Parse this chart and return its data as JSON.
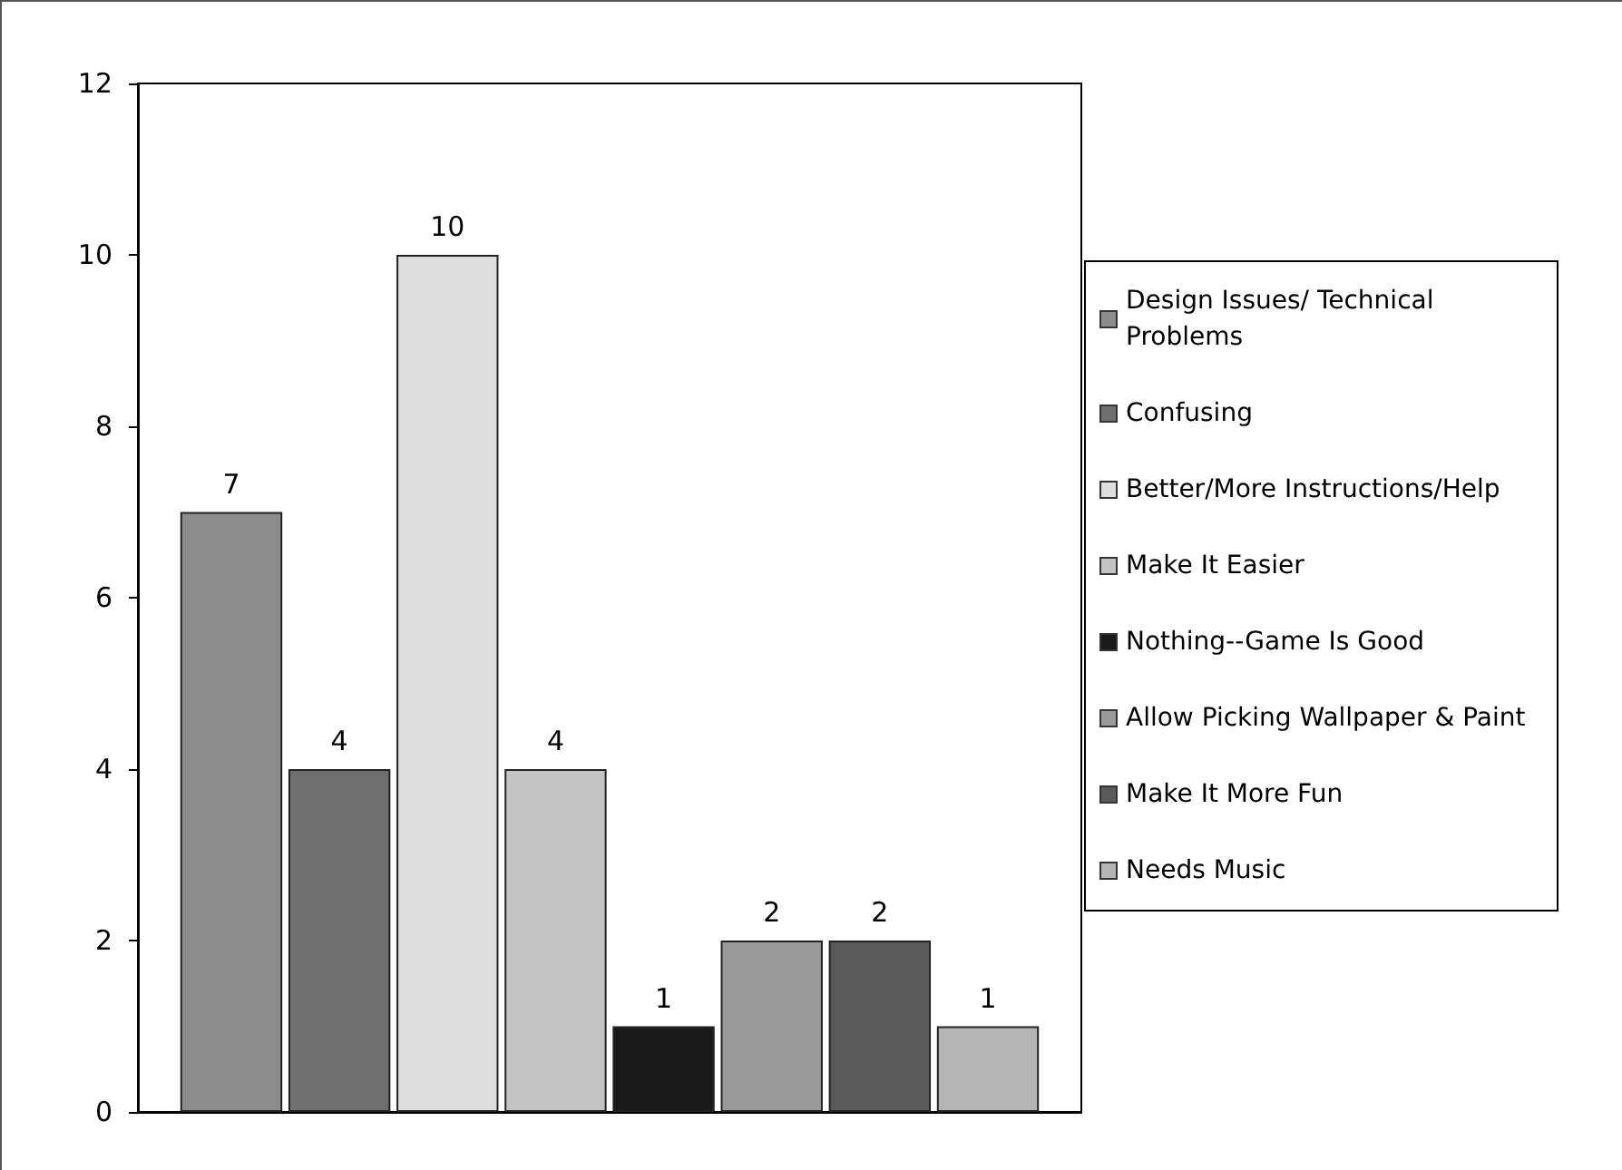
{
  "chart_data": {
    "type": "bar",
    "categories": [
      null
    ],
    "ylim": [
      0,
      12
    ],
    "yticks": [
      0,
      2,
      4,
      6,
      8,
      10,
      12
    ],
    "grid": false,
    "legend": "right",
    "data_labels": true,
    "series": [
      {
        "name": "Design Issues/ Technical Problems",
        "color": "#8c8c8c",
        "values": [
          7
        ]
      },
      {
        "name": "Confusing",
        "color": "#6e6e6e",
        "values": [
          4
        ]
      },
      {
        "name": "Better/More Instructions/Help",
        "color": "#dedede",
        "values": [
          10
        ]
      },
      {
        "name": "Make It Easier",
        "color": "#c4c4c4",
        "values": [
          4
        ]
      },
      {
        "name": "Nothing--Game Is Good",
        "color": "#1a1a1a",
        "values": [
          1
        ]
      },
      {
        "name": "Allow Picking Wallpaper & Paint",
        "color": "#9a9a9a",
        "values": [
          2
        ]
      },
      {
        "name": "Make It More Fun",
        "color": "#5a5a5a",
        "values": [
          2
        ]
      },
      {
        "name": "Needs Music",
        "color": "#b4b4b4",
        "values": [
          1
        ]
      }
    ]
  }
}
